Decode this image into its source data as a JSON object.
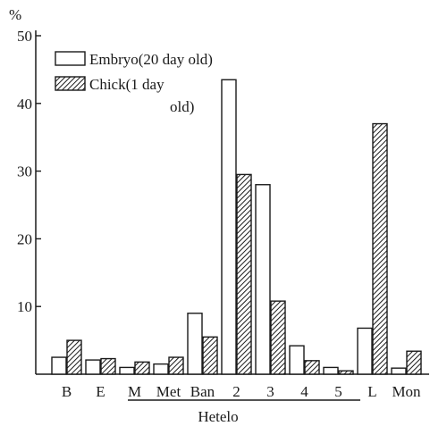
{
  "chart_data": {
    "type": "bar",
    "ylabel": "%",
    "ylim": [
      0,
      50
    ],
    "yticks": [
      10,
      20,
      30,
      40,
      50
    ],
    "categories": [
      "B",
      "E",
      "M",
      "Met",
      "Ban",
      "2",
      "3",
      "4",
      "5",
      "L",
      "Mon"
    ],
    "group_label": "Hetelo",
    "group_members": [
      "M",
      "Met",
      "Ban",
      "2",
      "3",
      "4",
      "5"
    ],
    "series": [
      {
        "name": "Embryo(20 day old)",
        "fill": "white",
        "values": [
          2.5,
          2.1,
          1.0,
          1.5,
          9.0,
          43.5,
          28.0,
          4.2,
          1.0,
          6.8,
          0.9
        ]
      },
      {
        "name": "Chick(1 day old)",
        "fill": "hatched",
        "values": [
          5.0,
          2.3,
          1.8,
          2.5,
          5.5,
          29.5,
          10.8,
          2.0,
          0.5,
          37.0,
          3.4
        ]
      }
    ],
    "legend": {
      "position": "top-left",
      "entries": [
        "Embryo(20 day old)",
        "Chick(1 day old)"
      ],
      "entry2_line1": "Chick(1 day",
      "entry2_line2": "old)"
    },
    "grid": false,
    "colors": {
      "ink": "#1a1a1a",
      "background": "#ffffff"
    }
  }
}
